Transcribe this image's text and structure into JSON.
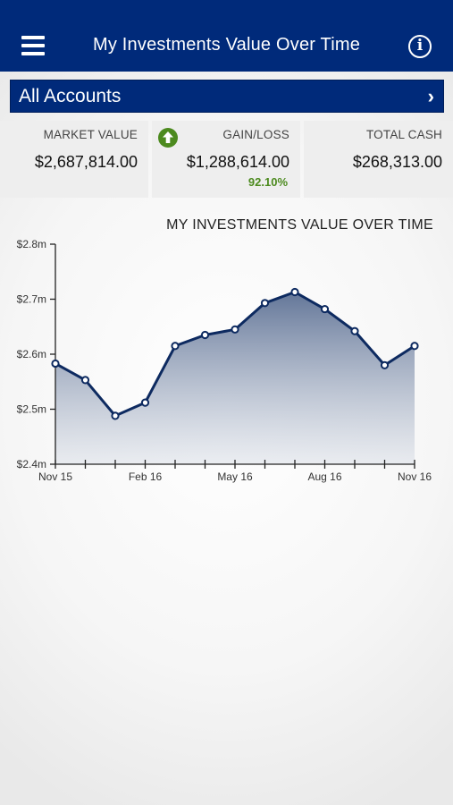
{
  "header": {
    "title": "My Investments Value Over Time",
    "menu_icon": "hamburger-menu-icon",
    "info_icon": "info-icon",
    "info_glyph": "i",
    "background": "#002a7a"
  },
  "accounts": {
    "label": "All Accounts",
    "chevron": "›"
  },
  "summary": {
    "market_value": {
      "label": "MARKET VALUE",
      "value": "$2,687,814.00"
    },
    "gain_loss": {
      "label": "GAIN/LOSS",
      "value": "$1,288,614.00",
      "percent": "92.10%",
      "icon": "up-arrow-circle-icon",
      "icon_color": "#4c8a1e"
    },
    "total_cash": {
      "label": "TOTAL CASH",
      "value": "$268,313.00"
    }
  },
  "chart_data": {
    "type": "area",
    "title": "MY INVESTMENTS VALUE OVER TIME",
    "x_tick_labels": [
      "Nov 15",
      "Feb 16",
      "May 16",
      "Aug 16",
      "Nov 16"
    ],
    "x_months": [
      "Nov 15",
      "Dec 15",
      "Jan 16",
      "Feb 16",
      "Mar 16",
      "Apr 16",
      "May 16",
      "Jun 16",
      "Jul 16",
      "Aug 16",
      "Sep 16",
      "Oct 16",
      "Nov 16"
    ],
    "y_tick_labels": [
      "$2.4m",
      "$2.5m",
      "$2.6m",
      "$2.7m",
      "$2.8m"
    ],
    "ylim": [
      2.4,
      2.8
    ],
    "y_unit": "millions USD",
    "series": [
      {
        "x": [
          "Nov 15",
          "Dec 15",
          "Jan 16",
          "Feb 16",
          "Mar 16",
          "Apr 16",
          "May 16",
          "Jun 16",
          "Jul 16",
          "Aug 16",
          "Sep 16",
          "Oct 16",
          "Nov 16"
        ],
        "values": [
          2.583,
          2.553,
          2.488,
          2.512,
          2.615,
          2.635,
          2.645,
          2.693,
          2.713,
          2.682,
          2.642,
          2.58,
          2.615
        ],
        "color": "#0d2a60"
      }
    ]
  }
}
